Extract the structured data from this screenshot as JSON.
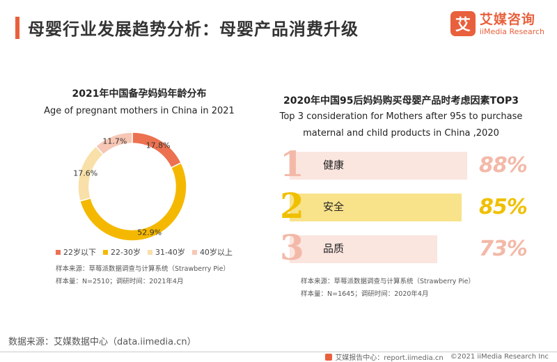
{
  "header": {
    "title": "母婴行业发展趋势分析：母婴产品消费升级",
    "logo_mark": "艾",
    "logo_cn": "艾媒咨询",
    "logo_en": "iiMedia Research",
    "accent_color": "#e8603c"
  },
  "left_panel": {
    "title_cn": "2021年中国备孕妈妈年龄分布",
    "title_en": "Age of pregnant mothers in China in 2021",
    "note_sample_source": "样本来源：草莓派数据调查与计算系统（Strawberry Pie）",
    "note_sample_size": "样本量：N=2510；调研时间：2021年4月"
  },
  "right_panel": {
    "title_cn": "2020年中国95后妈妈购买母婴产品时考虑因素TOP3",
    "title_en_line1": "Top 3 consideration for Mothers after 95s to purchase",
    "title_en_line2": "maternal and child products in China ,2020",
    "note_sample_source": "样本来源：草莓派数据调查与计算系统（Strawberry Pie）",
    "note_sample_size": "样本量：N=1645；调研时间：2020年4月"
  },
  "chart_data": [
    {
      "type": "pie",
      "donut": true,
      "title": "2021年中国备孕妈妈年龄分布",
      "subtitle": "Age of pregnant mothers in China in 2021",
      "categories": [
        "22岁以下",
        "22-30岁",
        "31-40岁",
        "40岁以上"
      ],
      "values": [
        17.8,
        52.9,
        17.6,
        11.7
      ],
      "labels": [
        "17.8%",
        "52.9%",
        "17.6%",
        "11.7%"
      ],
      "colors": [
        "#ec7150",
        "#f5b800",
        "#f9e0a8",
        "#f7c7b5"
      ],
      "legend_position": "bottom"
    },
    {
      "type": "bar",
      "orientation": "horizontal",
      "title": "2020年中国95后妈妈购买母婴产品时考虑因素TOP3",
      "ranks": [
        "1",
        "2",
        "3"
      ],
      "categories": [
        "健康",
        "安全",
        "品质"
      ],
      "values": [
        88,
        85,
        73
      ],
      "labels": [
        "88%",
        "85%",
        "73%"
      ],
      "bar_colors": [
        "#fbe5df",
        "#f8e28a",
        "#fbe5df"
      ],
      "number_colors": [
        "#f3b9a8",
        "#f0c000",
        "#f3b9a8"
      ]
    }
  ],
  "footer": {
    "source": "数据来源：艾媒数据中心（data.iimedia.cn）",
    "report": "艾媒报告中心：report.iimedia.cn",
    "copyright": "©2021  iiMedia Research  Inc"
  }
}
